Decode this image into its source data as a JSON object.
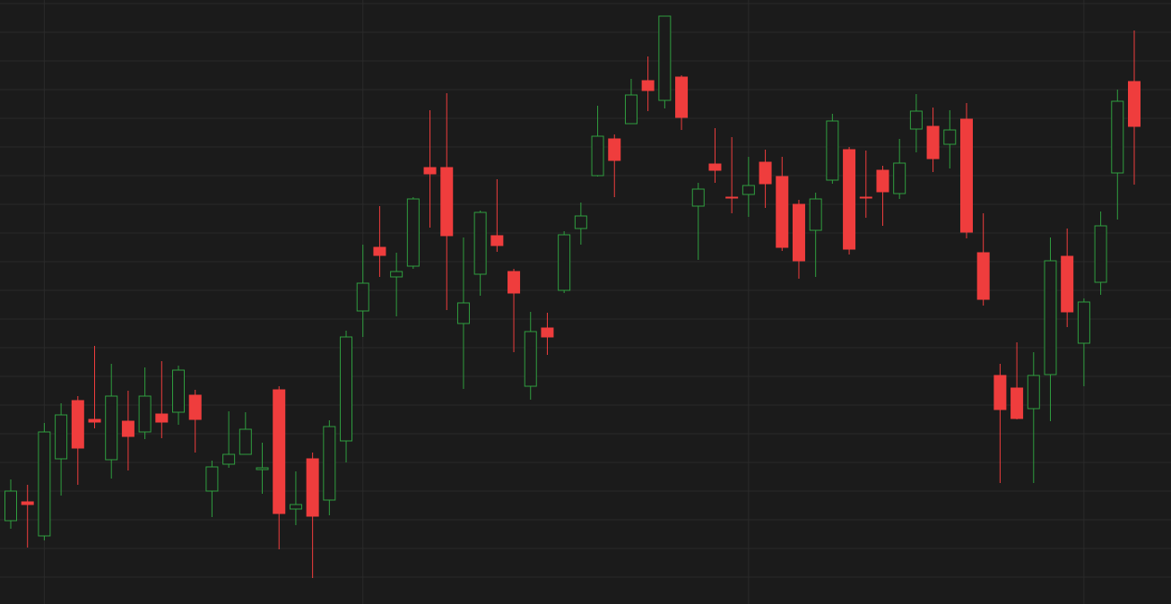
{
  "chart_data": {
    "type": "candlestick",
    "open": [
      93,
      114,
      76,
      162,
      227,
      206,
      161,
      204,
      192,
      212,
      214,
      233,
      126,
      156,
      167,
      150,
      239,
      106,
      162,
      116,
      182,
      327,
      398,
      365,
      377,
      487,
      487,
      313,
      368,
      411,
      371,
      243,
      308,
      350,
      419,
      478,
      519,
      536,
      584,
      562,
      588,
      444,
      491,
      454,
      457,
      493,
      477,
      446,
      417,
      473,
      507,
      454,
      484,
      458,
      530,
      533,
      513,
      541,
      392,
      255,
      241,
      218,
      256,
      388,
      291,
      359,
      481,
      583
    ],
    "high": [
      139,
      133,
      202,
      224,
      232,
      288,
      268,
      238,
      264,
      271,
      266,
      239,
      160,
      215,
      214,
      180,
      243,
      148,
      169,
      205,
      305,
      401,
      444,
      392,
      454,
      551,
      570,
      409,
      439,
      474,
      374,
      326,
      325,
      416,
      448,
      556,
      524,
      586,
      611,
      656,
      590,
      470,
      531,
      521,
      499,
      507,
      499,
      451,
      459,
      547,
      510,
      506,
      489,
      519,
      569,
      554,
      551,
      559,
      436,
      268,
      292,
      281,
      409,
      419,
      341,
      438,
      574,
      640
    ],
    "low": [
      84,
      63,
      71,
      121,
      133,
      196,
      140,
      149,
      184,
      185,
      200,
      169,
      97,
      152,
      167,
      123,
      61,
      88,
      29,
      99,
      158,
      298,
      365,
      321,
      374,
      420,
      328,
      240,
      344,
      393,
      281,
      228,
      278,
      347,
      401,
      477,
      454,
      536,
      550,
      553,
      529,
      384,
      470,
      436,
      432,
      442,
      394,
      363,
      365,
      469,
      390,
      431,
      422,
      452,
      504,
      482,
      486,
      408,
      333,
      135,
      206,
      135,
      204,
      309,
      243,
      345,
      429,
      468
    ],
    "close": [
      126,
      111,
      192,
      211,
      174,
      203,
      232,
      187,
      232,
      203,
      261,
      206,
      153,
      167,
      195,
      152,
      101,
      111,
      98,
      198,
      298,
      358,
      389,
      371,
      452,
      480,
      411,
      336,
      437,
      400,
      347,
      304,
      298,
      412,
      433,
      522,
      495,
      568,
      573,
      656,
      543,
      463,
      484,
      453,
      467,
      469,
      398,
      383,
      452,
      539,
      396,
      453,
      460,
      492,
      550,
      497,
      529,
      415,
      340,
      217,
      207,
      255,
      383,
      326,
      337,
      422,
      561,
      533
    ],
    "up_color": "#2f9e3f",
    "down_color": "#ef3d3d",
    "ylim": [
      0,
      674
    ],
    "yticks": [
      30,
      62,
      94,
      126,
      158,
      190,
      222,
      254,
      286,
      318,
      350,
      382,
      414,
      446,
      478,
      510,
      542,
      574,
      606,
      638,
      670
    ],
    "xticks": [
      2,
      21,
      44,
      64
    ],
    "grid": true
  }
}
